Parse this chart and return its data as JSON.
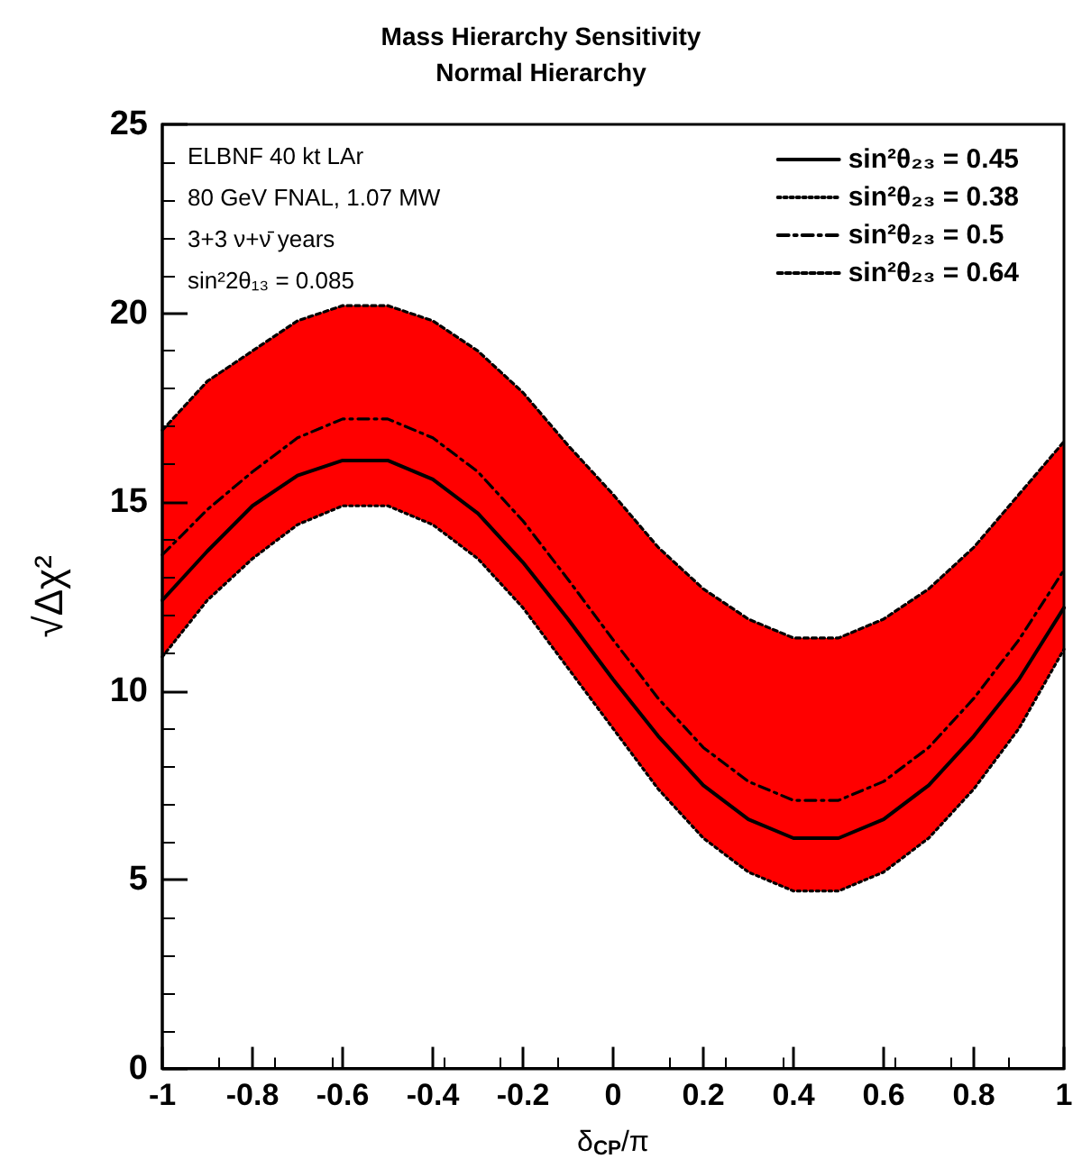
{
  "chart_data": {
    "type": "line",
    "title": "Mass Hierarchy Sensitivity",
    "subtitle": "Normal Hierarchy",
    "xlabel": "δ$_{CP}$/π",
    "ylabel": "√Δχ²",
    "annotations": [
      "ELBNF 40 kt LAr",
      "80 GeV FNAL, 1.07 MW",
      "3+3 ν+ν̄ years",
      "sin²2θ₁₃ = 0.085"
    ],
    "x": [
      -1,
      -0.9,
      -0.8,
      -0.7,
      -0.6,
      -0.5,
      -0.4,
      -0.3,
      -0.2,
      -0.1,
      0,
      0.1,
      0.2,
      0.3,
      0.4,
      0.5,
      0.6,
      0.7,
      0.8,
      0.9,
      1
    ],
    "series": [
      {
        "name": "sin²θ₂₃ = 0.45",
        "color": "#000000",
        "line_style": "solid",
        "values": [
          12.4,
          13.7,
          14.9,
          15.7,
          16.1,
          16.1,
          15.6,
          14.7,
          13.4,
          11.9,
          10.3,
          8.8,
          7.5,
          6.6,
          6.1,
          6.1,
          6.6,
          7.5,
          8.8,
          10.3,
          12.2
        ],
        "lower": [
          10.9,
          12.4,
          13.5,
          14.4,
          14.9,
          14.9,
          14.4,
          13.5,
          12.2,
          10.6,
          9.0,
          7.4,
          6.1,
          5.2,
          4.7,
          4.7,
          5.2,
          6.1,
          7.4,
          9.0,
          11.1
        ],
        "upper": [
          16.9,
          18.2,
          19.0,
          19.8,
          20.2,
          20.2,
          19.8,
          19.0,
          17.9,
          16.5,
          15.2,
          13.8,
          12.7,
          11.9,
          11.4,
          11.4,
          11.9,
          12.7,
          13.8,
          15.2,
          16.6
        ]
      },
      {
        "name": "sin²θ₂₃ = 0.38",
        "color": "#000000",
        "line_style": "dotted",
        "values": [
          10.9,
          12.4,
          13.5,
          14.4,
          14.9,
          14.9,
          14.4,
          13.5,
          12.2,
          10.6,
          9.0,
          7.4,
          6.1,
          5.2,
          4.7,
          4.7,
          5.2,
          6.1,
          7.4,
          9.0,
          11.1
        ]
      },
      {
        "name": "sin²θ₂₃ = 0.5",
        "color": "#000000",
        "line_style": "dashdot",
        "values": [
          13.6,
          14.8,
          15.8,
          16.7,
          17.2,
          17.2,
          16.7,
          15.8,
          14.5,
          12.95,
          11.35,
          9.8,
          8.5,
          7.6,
          7.1,
          7.1,
          7.6,
          8.5,
          9.8,
          11.35,
          13.2
        ]
      },
      {
        "name": "sin²θ₂₃ = 0.64",
        "color": "#000000",
        "line_style": "dashed",
        "values": [
          16.9,
          18.2,
          19.0,
          19.8,
          20.2,
          20.2,
          19.8,
          19.0,
          17.9,
          16.5,
          15.2,
          13.8,
          12.7,
          11.9,
          11.4,
          11.4,
          11.9,
          12.7,
          13.8,
          15.2,
          16.6
        ]
      }
    ],
    "xlim": [
      -1,
      1
    ],
    "xticks": [
      -1,
      -0.8,
      -0.6,
      -0.4,
      -0.2,
      0,
      0.2,
      0.4,
      0.6,
      0.8,
      1
    ],
    "ylim": [
      0,
      25
    ],
    "yticks": [
      0,
      5,
      10,
      15,
      20,
      25
    ],
    "grid": false,
    "legend": "top right",
    "marker": "none"
  }
}
